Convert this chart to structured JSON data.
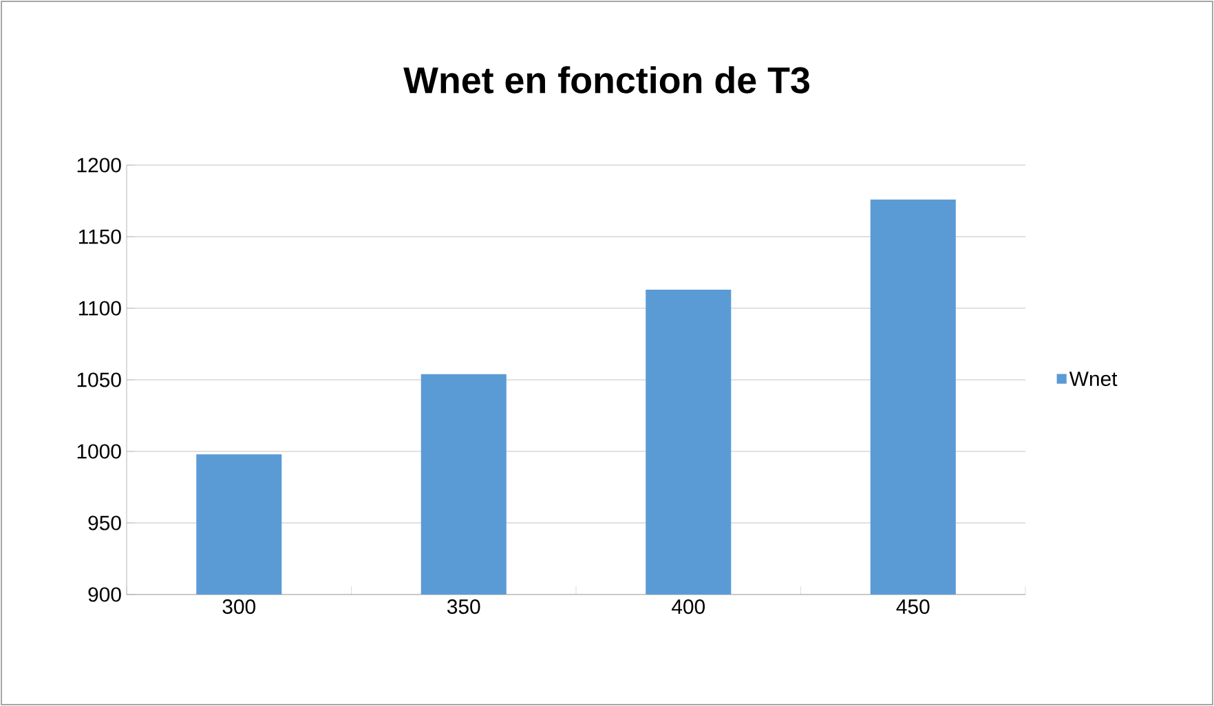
{
  "chart_data": {
    "type": "bar",
    "title": "Wnet en fonction de T3",
    "categories": [
      "300",
      "350",
      "400",
      "450"
    ],
    "series": [
      {
        "name": "Wnet",
        "color": "#5b9bd5",
        "values": [
          998,
          1054,
          1113,
          1176
        ]
      }
    ],
    "ylim": [
      900,
      1200
    ],
    "yticks": [
      900,
      950,
      1000,
      1050,
      1100,
      1150,
      1200
    ],
    "grid": "y",
    "legend": "right"
  }
}
